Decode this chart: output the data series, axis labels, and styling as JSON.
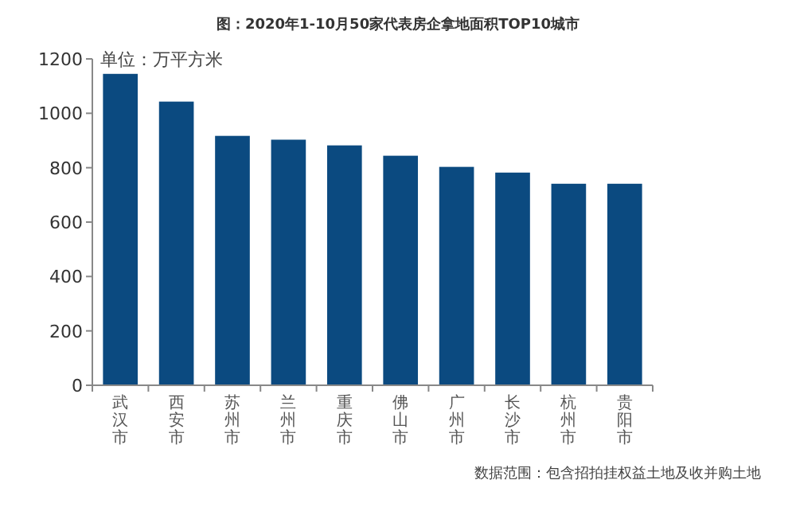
{
  "chart_data": {
    "type": "bar",
    "title": "图：2020年1-10月50家代表房企拿地面积TOP10城市",
    "categories": [
      "武汉市",
      "西安市",
      "苏州市",
      "兰州市",
      "重庆市",
      "佛山市",
      "广州市",
      "长沙市",
      "杭州市",
      "贵阳市"
    ],
    "values": [
      1145,
      1043,
      917,
      903,
      882,
      844,
      803,
      782,
      741,
      741
    ],
    "color": "#0b4a80",
    "ylim": [
      0,
      1200
    ],
    "yticks": [
      0,
      200,
      400,
      600,
      800,
      1000,
      1200
    ],
    "grid": false,
    "annotations": [
      "单位：万平方米",
      "数据范围：包含招拍挂权益土地及收并购土地"
    ]
  }
}
